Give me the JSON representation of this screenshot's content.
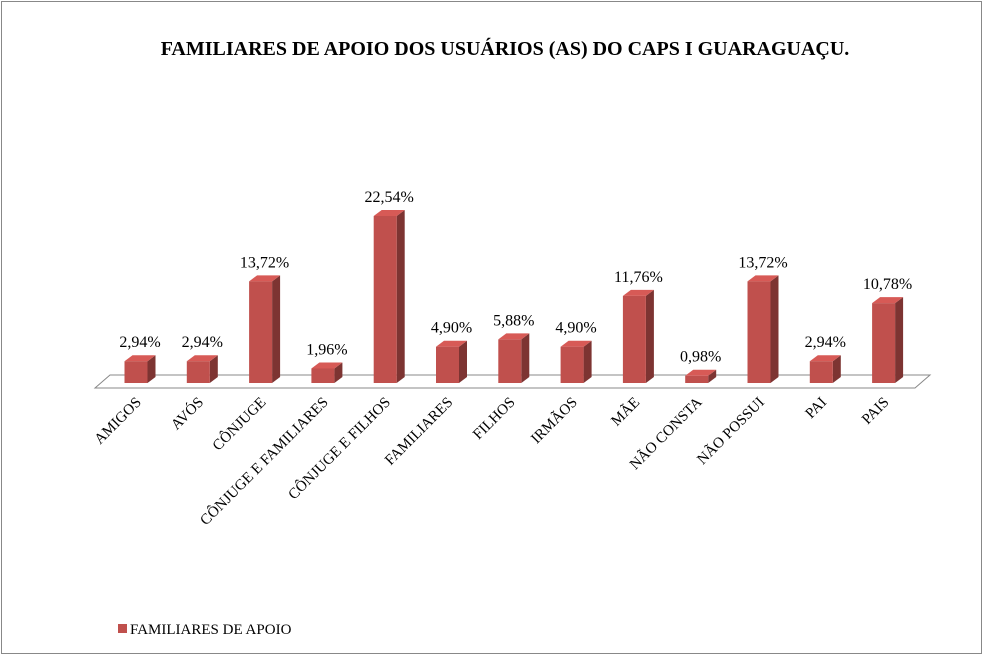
{
  "chart_data": {
    "type": "bar3d",
    "title": "FAMILIARES DE APOIO DOS USUÁRIOS (AS) DO CAPS I GUARAGUAÇU.",
    "categories": [
      "AMIGOS",
      "AVÓS",
      "CÔNJUGE",
      "CÔNJUGE E FAMILIARES",
      "CÔNJUGE E FILHOS",
      "FAMILIARES",
      "FILHOS",
      "IRMÃOS",
      "MÃE",
      "NÃO CONSTA",
      "NÃO POSSUI",
      "PAI",
      "PAIS"
    ],
    "series": [
      {
        "name": "FAMILIARES DE APOIO",
        "color": "#c0504d",
        "values": [
          2.94,
          2.94,
          13.72,
          1.96,
          22.54,
          4.9,
          5.88,
          4.9,
          11.76,
          0.98,
          13.72,
          2.94,
          10.78
        ],
        "value_labels": [
          "2,94%",
          "2,94%",
          "13,72%",
          "1,96%",
          "22,54%",
          "4,90%",
          "5,88%",
          "4,90%",
          "11,76%",
          "0,98%",
          "13,72%",
          "2,94%",
          "10,78%"
        ]
      }
    ],
    "legend": "bottom-left"
  }
}
